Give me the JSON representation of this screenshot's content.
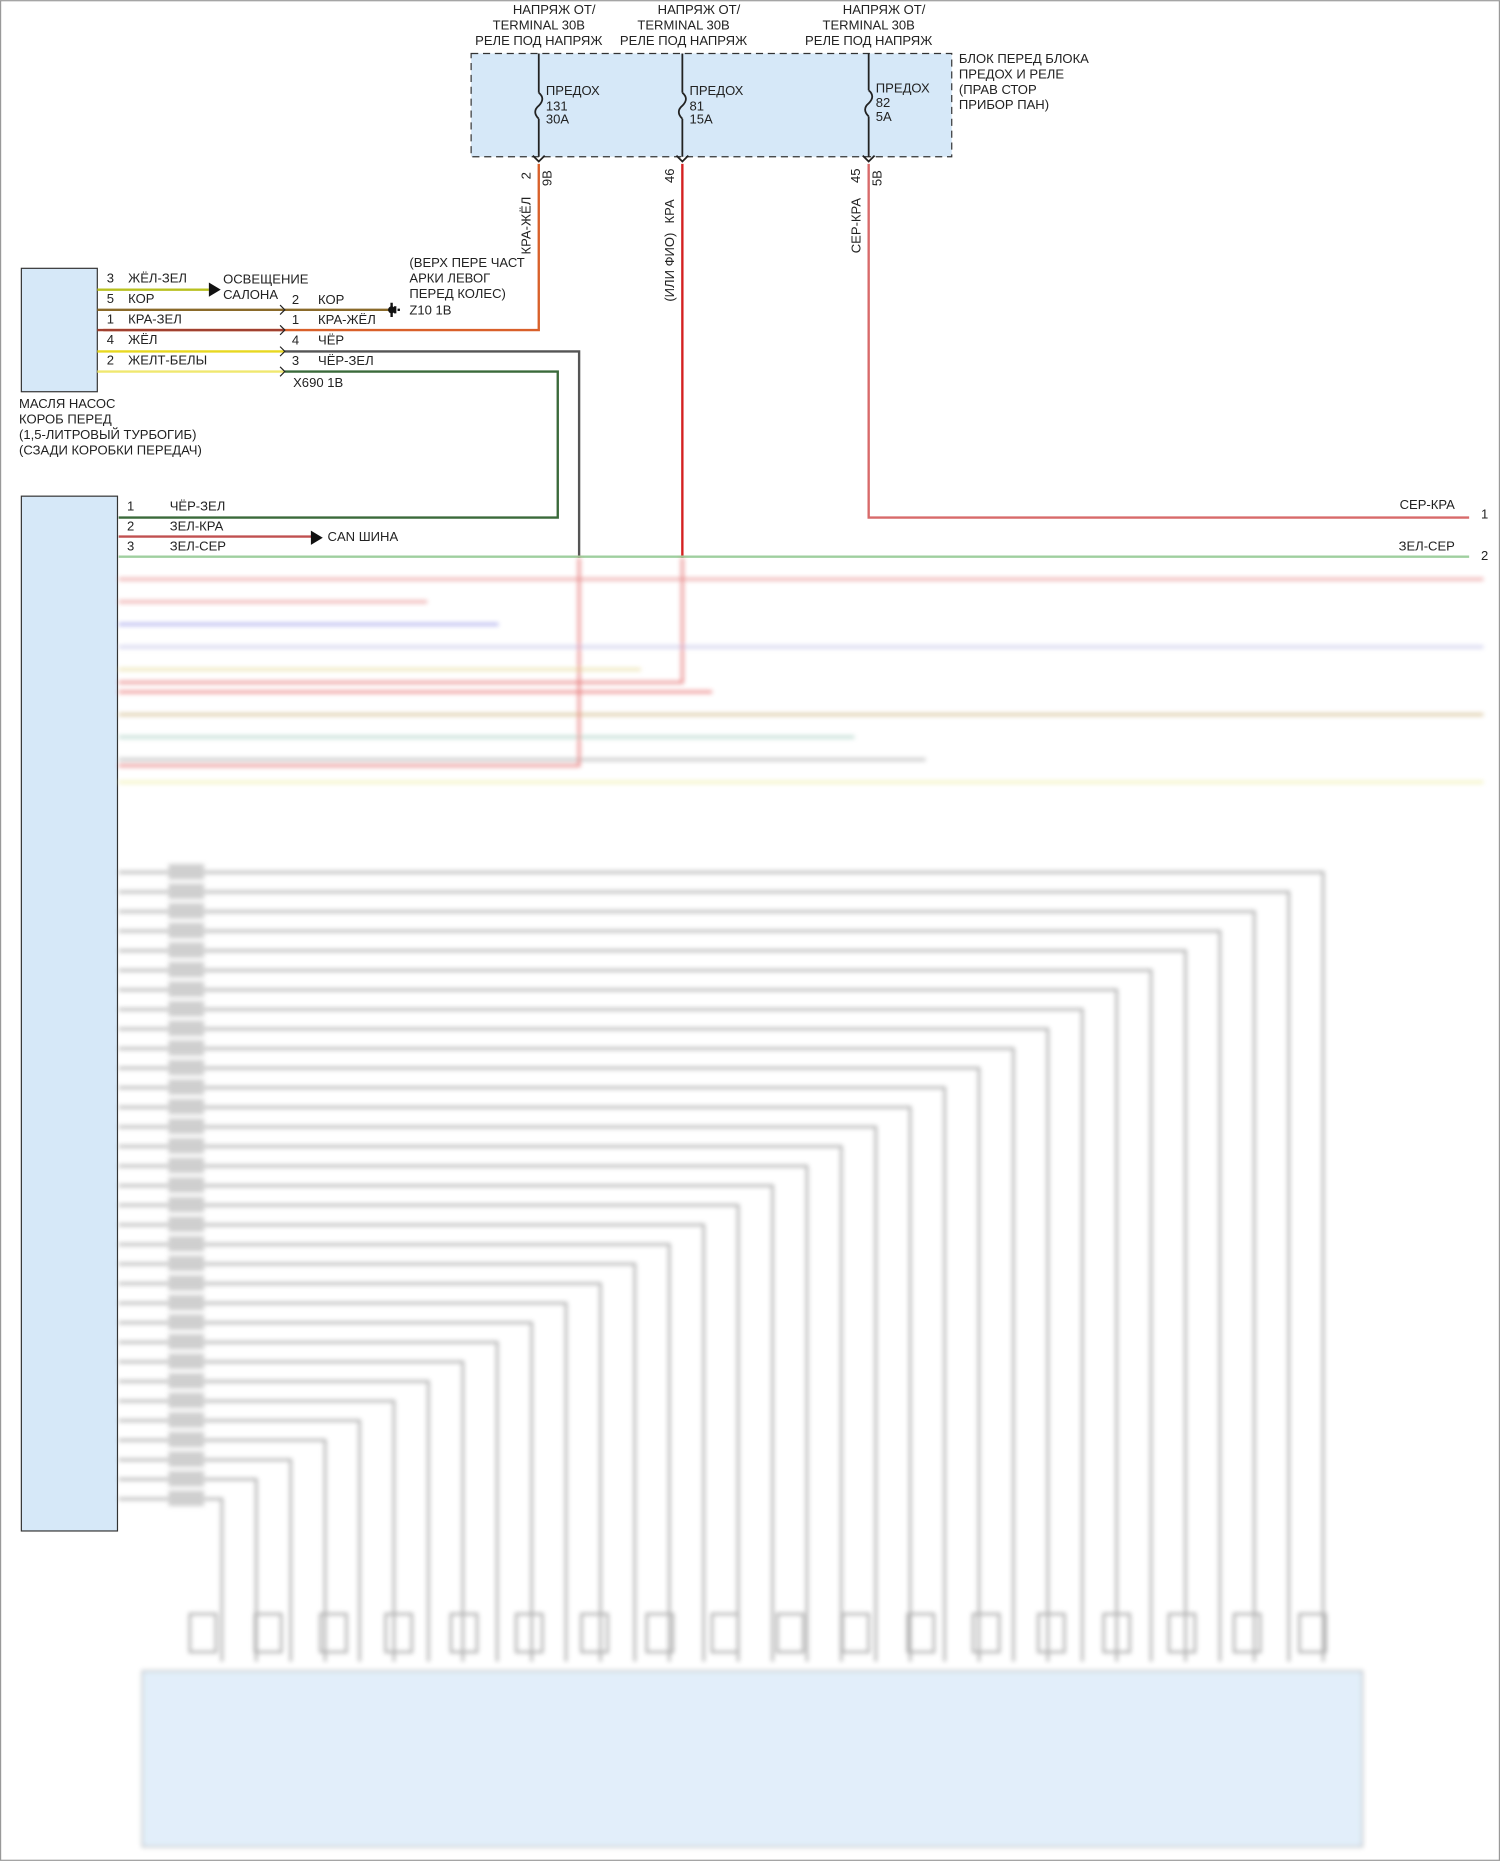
{
  "sources": [
    [
      "НАПРЯЖ ОТ/",
      "TERMINAL 30B",
      "РЕЛЕ ПОД НАПРЯЖ"
    ],
    [
      "НАПРЯЖ ОТ/",
      "TERMINAL 30B",
      "РЕЛЕ ПОД НАПРЯЖ"
    ],
    [
      "НАПРЯЖ ОТ/",
      "TERMINAL 30B",
      "РЕЛЕ ПОД НАПРЯЖ"
    ]
  ],
  "fuse_block": {
    "label": [
      "БЛОК ПЕРЕД БЛОКА",
      "ПРЕДОХ И РЕЛЕ",
      "(ПРАВ СТОР",
      "ПРИБОР ПАН)"
    ],
    "fuses": [
      {
        "name": "ПРЕДОХ",
        "number": "131",
        "rating": "30A",
        "pin": "2",
        "connector": "9B",
        "wire": "КРА-ЖЁЛ"
      },
      {
        "name": "ПРЕДОХ",
        "number": "81",
        "rating": "15A",
        "pin": "46",
        "wire": "КРА",
        "note": "(ИЛИ ФИО)"
      },
      {
        "name": "ПРЕДОХ",
        "number": "82",
        "rating": "5A",
        "pin": "45",
        "connector": "5B",
        "wire": "СЕР-КРА"
      }
    ]
  },
  "pump": {
    "label": [
      "МАСЛЯ НАСОС",
      "КОРОБ ПЕРЕД",
      "(1,5-ЛИТРОВЫЙ ТУРБОГИБ)",
      "(СЗАДИ КОРОБКИ ПЕРЕДАЧ)"
    ],
    "pins": [
      {
        "pin": "3",
        "wire": "ЖЁЛ-ЗЕЛ"
      },
      {
        "pin": "5",
        "wire": "КОР"
      },
      {
        "pin": "1",
        "wire": "КРА-ЗЕЛ"
      },
      {
        "pin": "4",
        "wire": "ЖЁЛ"
      },
      {
        "pin": "2",
        "wire": "ЖЕЛТ-БЕЛЫ"
      }
    ]
  },
  "interior_light": [
    "ОСВЕЩЕНИЕ",
    "САЛОНА"
  ],
  "x690": {
    "label": "X690 1B",
    "pins": [
      {
        "pin": "2",
        "wire": "КОР"
      },
      {
        "pin": "1",
        "wire": "КРА-ЖЁЛ"
      },
      {
        "pin": "4",
        "wire": "ЧЁР"
      },
      {
        "pin": "3",
        "wire": "ЧЁР-ЗЕЛ"
      }
    ]
  },
  "ground": {
    "note": [
      "(ВЕРХ ПЕРЕ ЧАСТ",
      "АРКИ ЛЕВОГ",
      "ПЕРЕД КОЛЕС)"
    ],
    "label": "Z10 1B"
  },
  "module": {
    "pins": [
      {
        "pin": "1",
        "wire": "ЧЁР-ЗЕЛ"
      },
      {
        "pin": "2",
        "wire": "ЗЕЛ-КРА"
      },
      {
        "pin": "3",
        "wire": "ЗЕЛ-СЕР"
      }
    ],
    "can": "CAN ШИНА"
  },
  "right_connector": {
    "pins": [
      {
        "pin": "1",
        "wire": "СЕР-КРА"
      },
      {
        "pin": "2",
        "wire": "ЗЕЛ-СЕР"
      }
    ]
  }
}
